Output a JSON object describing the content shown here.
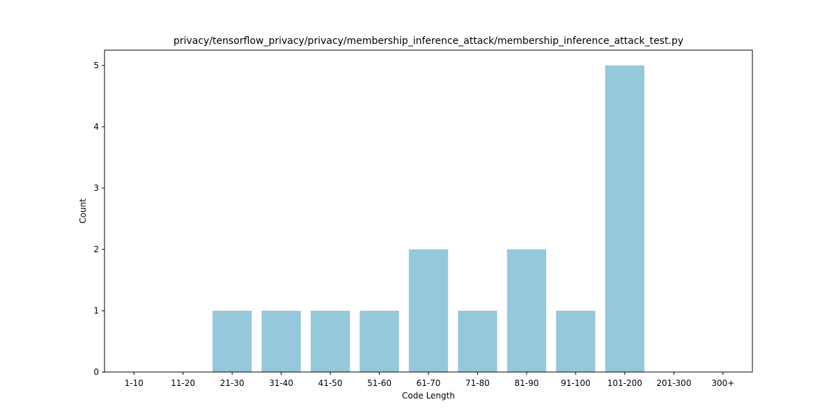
{
  "chart_data": {
    "type": "bar",
    "title": "privacy/tensorflow_privacy/privacy/membership_inference_attack/membership_inference_attack_test.py",
    "xlabel": "Code Length",
    "ylabel": "Count",
    "categories": [
      "1-10",
      "11-20",
      "21-30",
      "31-40",
      "41-50",
      "51-60",
      "61-70",
      "71-80",
      "81-90",
      "91-100",
      "101-200",
      "201-300",
      "300+"
    ],
    "values": [
      0,
      0,
      1,
      1,
      1,
      1,
      2,
      1,
      2,
      1,
      5,
      0,
      0
    ],
    "yticks": [
      0,
      1,
      2,
      3,
      4,
      5
    ],
    "ylim": [
      0,
      5.25
    ],
    "bar_color": "#96c8dc",
    "grid": false
  }
}
